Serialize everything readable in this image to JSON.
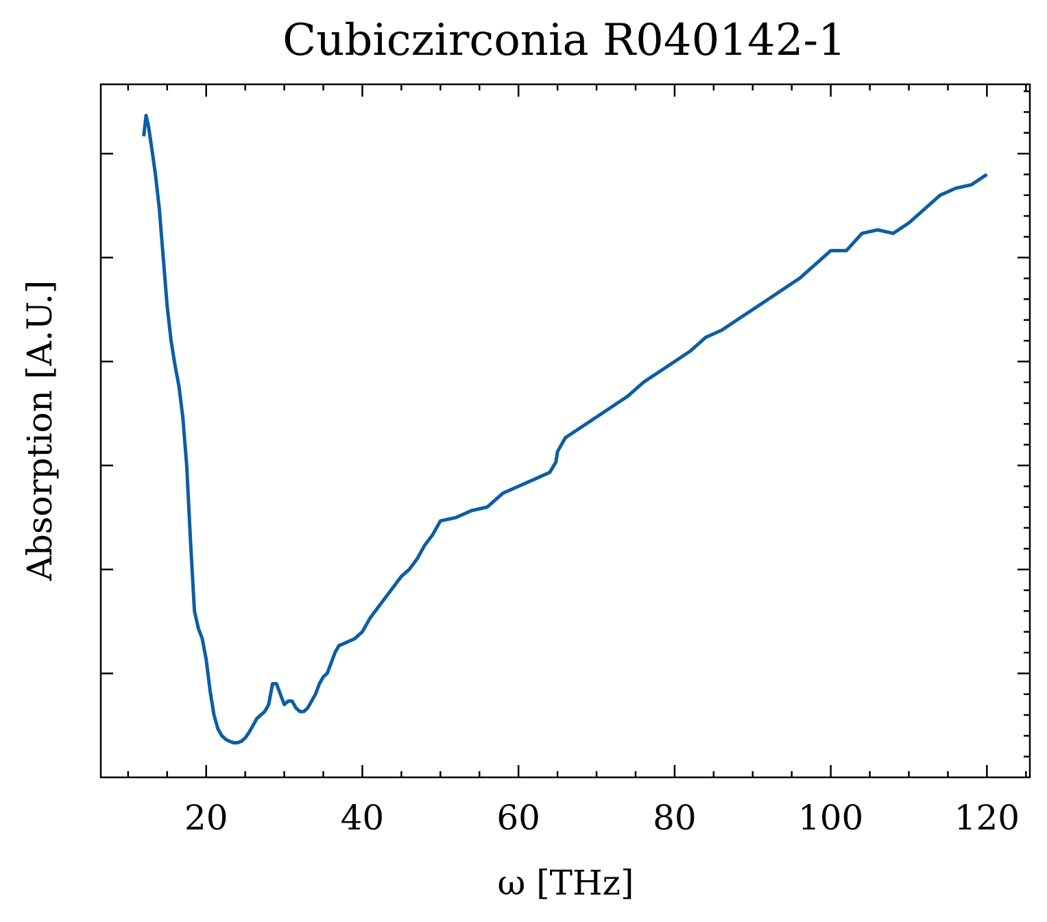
{
  "chart_data": {
    "type": "line",
    "title": "Cubiczirconia R040142-1",
    "xlabel": "ω [THz]",
    "ylabel": "Absorption [A.U.]",
    "xlim": [
      6.5,
      125.5
    ],
    "ylim": [
      0.0,
      1.0
    ],
    "x_ticks": [
      20,
      40,
      60,
      80,
      100,
      120
    ],
    "x_tick_labels": [
      "20",
      "40",
      "60",
      "80",
      "100",
      "120"
    ],
    "y_ticks": [
      0.15,
      0.3,
      0.45,
      0.6,
      0.75,
      0.9
    ],
    "y_tick_labels": [
      "",
      "",
      "",
      "",
      "",
      ""
    ],
    "grid": false,
    "color": "#0C5DA5",
    "series": [
      {
        "x": [
          12.0,
          12.3,
          12.6,
          13.0,
          13.5,
          14.0,
          14.5,
          15.0,
          15.5,
          16.0,
          16.5,
          17.0,
          17.5,
          18.0,
          18.5,
          19.0,
          19.5,
          20.0,
          20.5,
          21.0,
          21.5,
          22.0,
          22.5,
          23.0,
          23.5,
          24.0,
          24.5,
          25.0,
          25.5,
          26.0,
          26.5,
          27.0,
          27.5,
          28.0,
          28.5,
          29.0,
          29.5,
          30.0,
          30.5,
          31.0,
          31.5,
          32.0,
          32.5,
          33.0,
          33.5,
          34.0,
          34.5,
          35.0,
          35.5,
          36.0,
          36.5,
          37.0,
          38.0,
          39.0,
          40.0,
          41.0,
          42.0,
          43.0,
          44.0,
          45.0,
          46.0,
          47.0,
          48.0,
          49.0,
          50.0,
          52.0,
          54.0,
          56.0,
          58.0,
          60.0,
          62.0,
          64.0,
          64.8,
          65.0,
          66.0,
          68.0,
          70.0,
          72.0,
          74.0,
          76.0,
          78.0,
          80.0,
          82.0,
          84.0,
          86.0,
          88.0,
          90.0,
          92.0,
          94.0,
          96.0,
          98.0,
          100.0,
          102.0,
          104.0,
          106.0,
          108.0,
          110.0,
          112.0,
          114.0,
          116.0,
          118.0,
          120.0
        ],
        "y": [
          0.925,
          0.955,
          0.94,
          0.91,
          0.87,
          0.82,
          0.75,
          0.68,
          0.63,
          0.595,
          0.565,
          0.52,
          0.45,
          0.34,
          0.24,
          0.215,
          0.2,
          0.17,
          0.125,
          0.09,
          0.07,
          0.06,
          0.055,
          0.052,
          0.05,
          0.05,
          0.052,
          0.057,
          0.065,
          0.075,
          0.085,
          0.09,
          0.095,
          0.105,
          0.135,
          0.135,
          0.12,
          0.105,
          0.11,
          0.11,
          0.1,
          0.095,
          0.095,
          0.1,
          0.11,
          0.12,
          0.135,
          0.145,
          0.15,
          0.165,
          0.18,
          0.19,
          0.195,
          0.2,
          0.21,
          0.23,
          0.245,
          0.26,
          0.275,
          0.29,
          0.3,
          0.315,
          0.335,
          0.35,
          0.37,
          0.375,
          0.385,
          0.39,
          0.41,
          0.42,
          0.43,
          0.44,
          0.455,
          0.47,
          0.49,
          0.505,
          0.52,
          0.535,
          0.55,
          0.57,
          0.585,
          0.6,
          0.615,
          0.635,
          0.645,
          0.66,
          0.675,
          0.69,
          0.705,
          0.72,
          0.74,
          0.76,
          0.76,
          0.785,
          0.79,
          0.785,
          0.8,
          0.82,
          0.84,
          0.85,
          0.855,
          0.87
        ]
      }
    ]
  }
}
